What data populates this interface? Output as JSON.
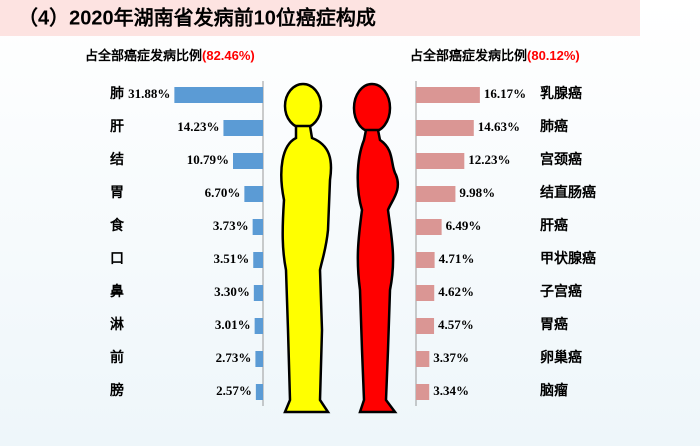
{
  "header": {
    "title": "（4）2020年湖南省发病前10位癌症构成"
  },
  "chart_data": [
    {
      "type": "hbar",
      "subtitle": "占全部癌症发病比例",
      "total_label": "(82.46%)",
      "categories": [
        "肺",
        "肝",
        "结",
        "胃",
        "食",
        "口",
        "鼻",
        "淋",
        "前",
        "膀"
      ],
      "values": [
        31.88,
        14.23,
        10.79,
        6.7,
        3.73,
        3.51,
        3.3,
        3.01,
        2.73,
        2.57
      ],
      "value_labels": [
        "31.88%",
        "14.23%",
        "10.79%",
        "6.70%",
        "3.73%",
        "3.51%",
        "3.30%",
        "3.01%",
        "2.73%",
        "2.57%"
      ],
      "color": "#5b9bd5"
    },
    {
      "type": "hbar",
      "subtitle": "占全部癌症发病比例",
      "total_label": "(80.12%)",
      "categories": [
        "乳腺癌",
        "肺癌",
        "宫颈癌",
        "结直肠癌",
        "肝癌",
        "甲状腺癌",
        "子宫癌",
        "胃癌",
        "卵巢癌",
        "脑瘤"
      ],
      "values": [
        16.17,
        14.63,
        12.23,
        9.98,
        6.49,
        4.71,
        4.62,
        4.57,
        3.37,
        3.34
      ],
      "value_labels": [
        "16.17%",
        "14.63%",
        "12.23%",
        "9.98%",
        "6.49%",
        "4.71%",
        "4.62%",
        "4.57%",
        "3.37%",
        "3.34%"
      ],
      "color": "#da9694"
    }
  ]
}
